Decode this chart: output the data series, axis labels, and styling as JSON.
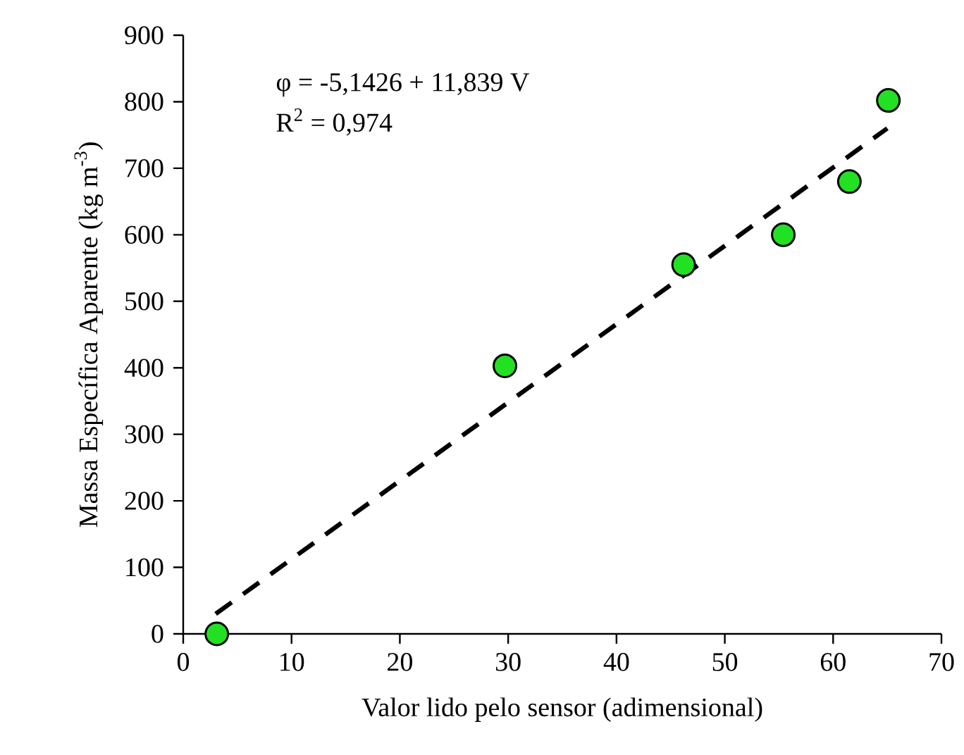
{
  "chart_data": {
    "type": "scatter",
    "xlabel": "Valor lido pelo sensor (adimensional)",
    "ylabel": "Massa Específica Aparente (kg m$^{-3}$)",
    "annotations": [
      "φ = -5,1426 + 11,839 V",
      "R$^{2}$ = 0,974"
    ],
    "series": [
      {
        "color": "#22e022",
        "marker": "circle",
        "x": [
          3.1,
          29.7,
          46.2,
          55.4,
          61.5,
          65.1
        ],
        "values": [
          0,
          403,
          555,
          600,
          680,
          802
        ]
      },
      {
        "type": "line",
        "color": "#000000",
        "marker": "none",
        "line_style": "dashed",
        "x": [
          3,
          65
        ],
        "values": [
          30,
          760
        ]
      }
    ],
    "xlim": [
      0,
      70
    ],
    "xticks": [
      0,
      10,
      20,
      30,
      40,
      50,
      60,
      70
    ],
    "ylim": [
      0,
      900
    ],
    "yticks": [
      0,
      100,
      200,
      300,
      400,
      500,
      600,
      700,
      800,
      900
    ]
  }
}
